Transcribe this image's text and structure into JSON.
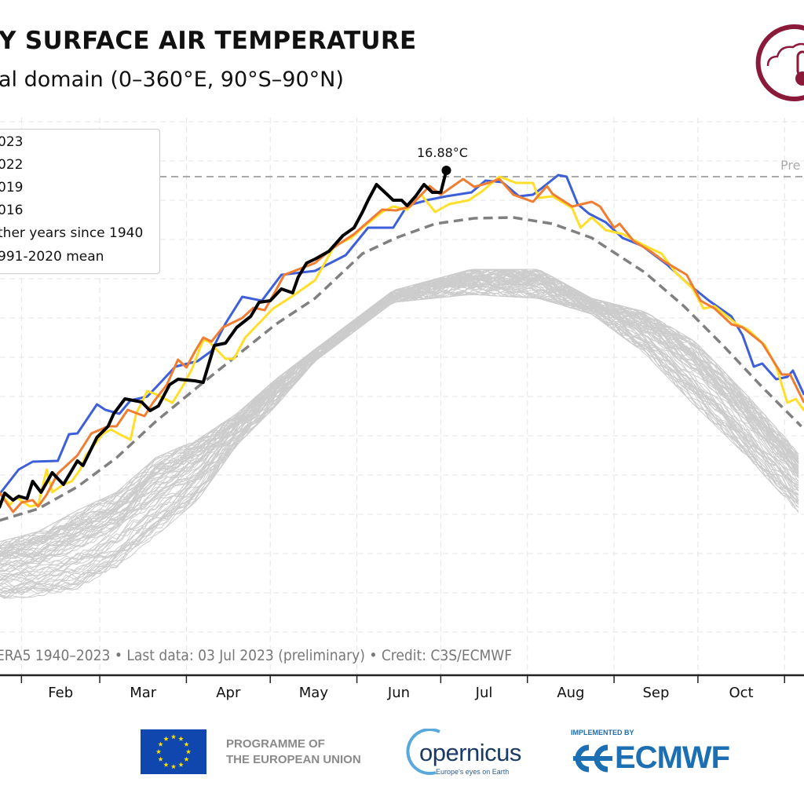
{
  "header": {
    "title": "Y SURFACE AIR TEMPERATURE",
    "subtitle": "al domain (0–360°E, 90°S–90°N)"
  },
  "credit": "ERA5 1940–2023 • Last data: 03 Jul 2023 (preliminary) • Credit: C3S/ECMWF",
  "logos": {
    "eu_text_line1": "PROGRAMME OF",
    "eu_text_line2": "THE EUROPEAN UNION",
    "copernicus_word": "opernicus",
    "copernicus_tagline": "Europe's eyes on Earth",
    "implemented_by": "IMPLEMENTED BY",
    "ecmwf": "ECMWF",
    "eu_blue": "#0f47af",
    "eu_star": "#ffdd00",
    "c3s_color": "#8b1a3a",
    "ecmwf_blue": "#1c6fb2"
  },
  "chart_data": {
    "type": "line",
    "x_axis": {
      "type": "date",
      "tick_labels": [
        "Feb",
        "Mar",
        "Apr",
        "May",
        "Jun",
        "Jul",
        "Aug",
        "Sep",
        "Oct"
      ],
      "visible_range": [
        "01-24",
        "11-08"
      ]
    },
    "y_axis": {
      "unit": "°C",
      "visible_range": [
        10.45,
        17.7
      ],
      "gridline_step": 0.5
    },
    "grid": true,
    "legend_placement": "top-left",
    "legend": [
      "023",
      "022",
      "019",
      "016",
      "ther years since 1940",
      "991-2020 mean"
    ],
    "annotation": {
      "text": "16.88°C",
      "date": "07-03",
      "value": 16.88
    },
    "previous_record": {
      "label": "Pre",
      "value": 16.8,
      "color": "#aaaaaa"
    },
    "series": [
      {
        "label": "023",
        "color": "#000000",
        "points": [
          [
            "01-24",
            12.58
          ],
          [
            "01-26",
            12.77
          ],
          [
            "01-29",
            12.68
          ],
          [
            "01-31",
            12.73
          ],
          [
            "02-03",
            12.7
          ],
          [
            "02-05",
            12.92
          ],
          [
            "02-08",
            12.78
          ],
          [
            "02-12",
            13.03
          ],
          [
            "02-16",
            12.88
          ],
          [
            "02-21",
            13.18
          ],
          [
            "02-23",
            13.12
          ],
          [
            "02-28",
            13.48
          ],
          [
            "03-04",
            13.62
          ],
          [
            "03-06",
            13.78
          ],
          [
            "03-10",
            13.97
          ],
          [
            "03-16",
            13.93
          ],
          [
            "03-19",
            13.82
          ],
          [
            "03-22",
            13.88
          ],
          [
            "03-26",
            14.15
          ],
          [
            "03-29",
            14.22
          ],
          [
            "04-04",
            14.2
          ],
          [
            "04-07",
            14.18
          ],
          [
            "04-11",
            14.65
          ],
          [
            "04-15",
            14.68
          ],
          [
            "04-19",
            14.88
          ],
          [
            "04-24",
            15.02
          ],
          [
            "04-27",
            15.2
          ],
          [
            "05-01",
            15.22
          ],
          [
            "05-05",
            15.37
          ],
          [
            "05-09",
            15.32
          ],
          [
            "05-11",
            15.52
          ],
          [
            "05-14",
            15.7
          ],
          [
            "05-17",
            15.75
          ],
          [
            "05-22",
            15.85
          ],
          [
            "05-27",
            16.05
          ],
          [
            "05-31",
            16.15
          ],
          [
            "06-03",
            16.35
          ],
          [
            "06-05",
            16.5
          ],
          [
            "06-08",
            16.7
          ],
          [
            "06-11",
            16.6
          ],
          [
            "06-14",
            16.5
          ],
          [
            "06-17",
            16.5
          ],
          [
            "06-19",
            16.43
          ],
          [
            "06-22",
            16.55
          ],
          [
            "06-25",
            16.7
          ],
          [
            "06-28",
            16.6
          ],
          [
            "07-01",
            16.6
          ],
          [
            "07-03",
            16.88
          ]
        ]
      },
      {
        "label": "022",
        "color": "#f07d32",
        "points": [
          [
            "01-24",
            12.78
          ],
          [
            "01-29",
            12.53
          ],
          [
            "02-01",
            12.65
          ],
          [
            "02-05",
            12.68
          ],
          [
            "02-07",
            12.6
          ],
          [
            "02-10",
            12.75
          ],
          [
            "02-14",
            13.02
          ],
          [
            "02-21",
            13.25
          ],
          [
            "02-26",
            13.53
          ],
          [
            "03-04",
            13.62
          ],
          [
            "03-07",
            13.62
          ],
          [
            "03-11",
            13.83
          ],
          [
            "03-17",
            13.75
          ],
          [
            "03-20",
            13.92
          ],
          [
            "03-25",
            14.15
          ],
          [
            "03-29",
            14.47
          ],
          [
            "04-01",
            14.37
          ],
          [
            "04-04",
            14.57
          ],
          [
            "04-07",
            14.75
          ],
          [
            "04-10",
            14.7
          ],
          [
            "04-14",
            14.88
          ],
          [
            "04-21",
            15.0
          ],
          [
            "04-25",
            15.13
          ],
          [
            "04-29",
            15.1
          ],
          [
            "05-03",
            15.35
          ],
          [
            "05-06",
            15.55
          ],
          [
            "05-17",
            15.7
          ],
          [
            "05-23",
            15.88
          ],
          [
            "05-31",
            16.07
          ],
          [
            "06-10",
            16.38
          ],
          [
            "06-15",
            16.37
          ],
          [
            "06-20",
            16.42
          ],
          [
            "06-27",
            16.68
          ],
          [
            "07-01",
            16.57
          ],
          [
            "07-09",
            16.77
          ],
          [
            "07-13",
            16.67
          ],
          [
            "07-18",
            16.72
          ],
          [
            "07-22",
            16.77
          ],
          [
            "07-27",
            16.57
          ],
          [
            "08-03",
            16.48
          ],
          [
            "08-08",
            16.68
          ],
          [
            "08-10",
            16.58
          ],
          [
            "08-17",
            16.42
          ],
          [
            "08-24",
            16.48
          ],
          [
            "08-27",
            16.42
          ],
          [
            "09-01",
            16.15
          ],
          [
            "09-03",
            16.2
          ],
          [
            "09-08",
            15.98
          ],
          [
            "09-14",
            15.85
          ],
          [
            "09-19",
            15.72
          ],
          [
            "09-27",
            15.55
          ],
          [
            "10-02",
            15.22
          ],
          [
            "10-07",
            15.12
          ],
          [
            "10-13",
            14.92
          ],
          [
            "10-17",
            14.88
          ],
          [
            "10-24",
            14.68
          ],
          [
            "10-31",
            14.28
          ],
          [
            "11-03",
            14.28
          ],
          [
            "11-08",
            13.92
          ]
        ]
      },
      {
        "label": "019",
        "color": "#ffdf29",
        "points": [
          [
            "01-24",
            12.78
          ],
          [
            "01-28",
            12.62
          ],
          [
            "01-30",
            12.72
          ],
          [
            "02-04",
            12.6
          ],
          [
            "02-07",
            12.62
          ],
          [
            "02-10",
            13.07
          ],
          [
            "02-12",
            12.78
          ],
          [
            "02-16",
            12.88
          ],
          [
            "02-19",
            12.92
          ],
          [
            "02-22",
            13.07
          ],
          [
            "02-24",
            13.25
          ],
          [
            "03-02",
            13.52
          ],
          [
            "03-05",
            13.58
          ],
          [
            "03-08",
            13.52
          ],
          [
            "03-12",
            13.45
          ],
          [
            "03-14",
            13.78
          ],
          [
            "03-18",
            14.07
          ],
          [
            "03-21",
            14.03
          ],
          [
            "03-27",
            13.92
          ],
          [
            "03-31",
            14.15
          ],
          [
            "04-03",
            14.35
          ],
          [
            "04-07",
            14.72
          ],
          [
            "04-09",
            14.7
          ],
          [
            "04-15",
            14.48
          ],
          [
            "04-18",
            14.48
          ],
          [
            "04-22",
            14.75
          ],
          [
            "05-02",
            15.12
          ],
          [
            "05-09",
            15.28
          ],
          [
            "05-17",
            15.48
          ],
          [
            "05-24",
            15.92
          ],
          [
            "05-30",
            16.02
          ],
          [
            "06-03",
            16.15
          ],
          [
            "06-10",
            16.35
          ],
          [
            "06-14",
            16.42
          ],
          [
            "06-19",
            16.38
          ],
          [
            "06-24",
            16.57
          ],
          [
            "06-29",
            16.35
          ],
          [
            "07-04",
            16.45
          ],
          [
            "07-11",
            16.5
          ],
          [
            "07-16",
            16.62
          ],
          [
            "07-22",
            16.8
          ],
          [
            "07-28",
            16.72
          ],
          [
            "08-03",
            16.72
          ],
          [
            "08-05",
            16.53
          ],
          [
            "08-10",
            16.55
          ],
          [
            "08-17",
            16.4
          ],
          [
            "08-20",
            16.15
          ],
          [
            "08-24",
            16.28
          ],
          [
            "08-29",
            16.12
          ],
          [
            "09-04",
            16.07
          ],
          [
            "09-12",
            15.92
          ],
          [
            "09-18",
            15.82
          ],
          [
            "09-23",
            15.58
          ],
          [
            "09-29",
            15.38
          ],
          [
            "10-03",
            15.12
          ],
          [
            "10-07",
            15.15
          ],
          [
            "10-15",
            14.92
          ],
          [
            "10-19",
            14.85
          ],
          [
            "10-25",
            14.65
          ],
          [
            "10-29",
            14.38
          ],
          [
            "11-02",
            13.92
          ],
          [
            "11-05",
            13.97
          ],
          [
            "11-08",
            13.82
          ]
        ]
      },
      {
        "label": "016",
        "color": "#3d5fd9",
        "points": [
          [
            "01-24",
            12.75
          ],
          [
            "01-31",
            13.07
          ],
          [
            "02-05",
            13.17
          ],
          [
            "02-14",
            13.18
          ],
          [
            "02-18",
            13.52
          ],
          [
            "02-21",
            13.53
          ],
          [
            "02-28",
            13.9
          ],
          [
            "03-03",
            13.83
          ],
          [
            "03-08",
            13.78
          ],
          [
            "03-12",
            13.95
          ],
          [
            "03-18",
            14.0
          ],
          [
            "03-22",
            14.15
          ],
          [
            "03-28",
            14.38
          ],
          [
            "04-05",
            14.45
          ],
          [
            "04-10",
            14.58
          ],
          [
            "04-15",
            14.93
          ],
          [
            "04-21",
            15.27
          ],
          [
            "04-28",
            15.22
          ],
          [
            "05-05",
            15.55
          ],
          [
            "05-17",
            15.6
          ],
          [
            "05-28",
            15.8
          ],
          [
            "06-05",
            16.15
          ],
          [
            "06-14",
            16.15
          ],
          [
            "06-19",
            16.43
          ],
          [
            "06-26",
            16.5
          ],
          [
            "07-03",
            16.55
          ],
          [
            "07-12",
            16.6
          ],
          [
            "07-17",
            16.75
          ],
          [
            "07-23",
            16.73
          ],
          [
            "07-29",
            16.55
          ],
          [
            "08-03",
            16.57
          ],
          [
            "08-06",
            16.65
          ],
          [
            "08-12",
            16.82
          ],
          [
            "08-15",
            16.8
          ],
          [
            "08-19",
            16.45
          ],
          [
            "08-23",
            16.33
          ],
          [
            "08-29",
            16.22
          ],
          [
            "09-04",
            16.02
          ],
          [
            "09-11",
            15.92
          ],
          [
            "09-20",
            15.68
          ],
          [
            "09-27",
            15.45
          ],
          [
            "10-05",
            15.22
          ],
          [
            "10-13",
            15.02
          ],
          [
            "10-17",
            14.78
          ],
          [
            "10-21",
            14.38
          ],
          [
            "10-24",
            14.42
          ],
          [
            "10-29",
            14.22
          ],
          [
            "11-02",
            14.25
          ],
          [
            "11-04",
            14.33
          ],
          [
            "11-08",
            14.02
          ]
        ]
      }
    ],
    "other_years": {
      "label": "ther years since 1940",
      "color": "#cccccc",
      "dates": [
        "01-24",
        "02-07",
        "02-21",
        "03-07",
        "03-21",
        "04-05",
        "04-19",
        "05-03",
        "05-17",
        "06-14",
        "07-12",
        "08-05",
        "08-24",
        "09-12",
        "09-30",
        "10-19",
        "11-07"
      ],
      "lower": [
        11.42,
        11.45,
        11.55,
        11.82,
        12.22,
        12.68,
        13.38,
        13.88,
        14.45,
        15.2,
        15.3,
        15.25,
        15.05,
        14.55,
        13.88,
        13.22,
        12.48
      ],
      "upper": [
        12.15,
        12.28,
        12.55,
        12.78,
        13.22,
        13.45,
        13.78,
        14.22,
        14.6,
        15.35,
        15.62,
        15.62,
        15.25,
        15.08,
        14.7,
        14.0,
        13.25
      ]
    },
    "mean": {
      "label": "991-2020 mean",
      "color": "#808080",
      "style": "dashed",
      "points": [
        [
          "01-24",
          12.42
        ],
        [
          "02-07",
          12.57
        ],
        [
          "02-21",
          12.85
        ],
        [
          "03-07",
          13.22
        ],
        [
          "03-21",
          13.68
        ],
        [
          "04-05",
          14.12
        ],
        [
          "04-19",
          14.52
        ],
        [
          "05-03",
          14.92
        ],
        [
          "05-17",
          15.25
        ],
        [
          "06-03",
          15.82
        ],
        [
          "06-15",
          16.02
        ],
        [
          "06-29",
          16.2
        ],
        [
          "07-13",
          16.27
        ],
        [
          "07-27",
          16.28
        ],
        [
          "08-10",
          16.2
        ],
        [
          "08-24",
          16.02
        ],
        [
          "09-12",
          15.58
        ],
        [
          "09-26",
          15.15
        ],
        [
          "10-10",
          14.65
        ],
        [
          "10-24",
          14.12
        ],
        [
          "11-07",
          13.62
        ]
      ]
    }
  }
}
